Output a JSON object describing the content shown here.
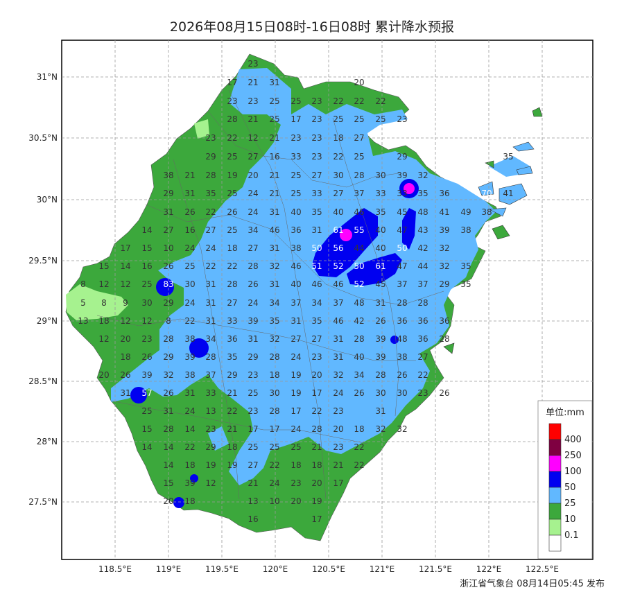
{
  "title": "2026年08月15日08时-16日08时 累计降水预报",
  "footer": "浙江省气象台 08月14日05:45 发布",
  "axes": {
    "lat_labels": [
      "31°N",
      "30.5°N",
      "30°N",
      "29.5°N",
      "29°N",
      "28.5°N",
      "28°N",
      "27.5°N"
    ],
    "lon_labels": [
      "118.5°E",
      "119°E",
      "119.5°E",
      "120°E",
      "120.5°E",
      "121°E",
      "121.5°E",
      "122°E",
      "122.5°E"
    ]
  },
  "legend": {
    "title": "单位:mm",
    "items": [
      {
        "label": "400",
        "color": "#ff0000"
      },
      {
        "label": "250",
        "color": "#7f0041"
      },
      {
        "label": "100",
        "color": "#ff00ff"
      },
      {
        "label": "50",
        "color": "#0000f0"
      },
      {
        "label": "25",
        "color": "#61b8ff"
      },
      {
        "label": "10",
        "color": "#3ca83c"
      },
      {
        "label": "0.1",
        "color": "#a6f28f"
      },
      {
        "label": "",
        "color": "#ffffff"
      }
    ]
  },
  "colors": {
    "sea": "#ffffff",
    "land_10": "#3ca83c",
    "land_25": "#61b8ff",
    "land_50": "#0000f0",
    "land_100": "#ff00ff",
    "land_light": "#a6f28f"
  },
  "station_values": [
    {
      "v": "23",
      "lon": 119.85,
      "lat": 31.1
    },
    {
      "v": "17",
      "lon": 119.72,
      "lat": 30.95
    },
    {
      "v": "21",
      "lon": 119.85,
      "lat": 30.95
    },
    {
      "v": "31",
      "lon": 120.0,
      "lat": 30.95
    },
    {
      "v": "20",
      "lon": 120.68,
      "lat": 30.95
    },
    {
      "v": "23",
      "lon": 119.72,
      "lat": 30.81
    },
    {
      "v": "23",
      "lon": 119.85,
      "lat": 30.81
    },
    {
      "v": "25",
      "lon": 120.0,
      "lat": 30.81
    },
    {
      "v": "25",
      "lon": 120.15,
      "lat": 30.81
    },
    {
      "v": "23",
      "lon": 120.3,
      "lat": 30.81
    },
    {
      "v": "22",
      "lon": 120.45,
      "lat": 30.81
    },
    {
      "v": "22",
      "lon": 120.58,
      "lat": 30.81
    },
    {
      "v": "22",
      "lon": 120.72,
      "lat": 30.81
    },
    {
      "v": "28",
      "lon": 120.87,
      "lat": 30.81
    },
    {
      "v": "21",
      "lon": 119.72,
      "lat": 30.66
    },
    {
      "v": "25",
      "lon": 119.85,
      "lat": 30.66
    },
    {
      "v": "17",
      "lon": 120.0,
      "lat": 30.66
    },
    {
      "v": "23",
      "lon": 120.15,
      "lat": 30.66
    },
    {
      "v": "25",
      "lon": 120.3,
      "lat": 30.66
    },
    {
      "v": "25",
      "lon": 120.45,
      "lat": 30.66
    },
    {
      "v": "25",
      "lon": 120.58,
      "lat": 30.66
    },
    {
      "v": "23",
      "lon": 120.72,
      "lat": 30.66
    },
    {
      "v": "23",
      "lon": 120.87,
      "lat": 30.66
    },
    {
      "v": "22",
      "lon": 121.02,
      "lat": 30.66
    },
    {
      "v": "12",
      "lon": 119.35,
      "lat": 30.5
    },
    {
      "v": "21",
      "lon": 119.5,
      "lat": 30.5
    },
    {
      "v": "23",
      "lon": 119.62,
      "lat": 30.5
    },
    {
      "v": "23",
      "lon": 119.74,
      "lat": 30.5
    },
    {
      "v": "18",
      "lon": 120.0,
      "lat": 30.5
    },
    {
      "v": "27",
      "lon": 120.15,
      "lat": 30.5
    },
    {
      "v": "29",
      "lon": 120.3,
      "lat": 30.5
    },
    {
      "v": "25",
      "lon": 120.45,
      "lat": 30.5
    },
    {
      "v": "27",
      "lon": 120.58,
      "lat": 30.5
    },
    {
      "v": "16",
      "lon": 119.5,
      "lat": 30.35
    },
    {
      "v": "33",
      "lon": 119.62,
      "lat": 30.35
    },
    {
      "v": "23",
      "lon": 119.74,
      "lat": 30.35
    },
    {
      "v": "22",
      "lon": 119.87,
      "lat": 30.35
    },
    {
      "v": "25",
      "lon": 120.0,
      "lat": 30.35
    },
    {
      "v": "29",
      "lon": 120.15,
      "lat": 30.35
    },
    {
      "v": "35",
      "lon": 120.3,
      "lat": 30.35
    },
    {
      "v": "38",
      "lon": 120.45,
      "lat": 30.35
    },
    {
      "v": "21",
      "lon": 120.87,
      "lat": 30.35
    },
    {
      "v": "28",
      "lon": 121.72,
      "lat": 30.35
    },
    {
      "v": "19",
      "lon": 119.0,
      "lat": 30.2
    },
    {
      "v": "20",
      "lon": 119.12,
      "lat": 30.2
    },
    {
      "v": "21",
      "lon": 119.25,
      "lat": 30.2
    },
    {
      "v": "25",
      "lon": 119.38,
      "lat": 30.2
    },
    {
      "v": "27",
      "lon": 119.5,
      "lat": 30.2
    },
    {
      "v": "30",
      "lon": 119.62,
      "lat": 30.2
    },
    {
      "v": "28",
      "lon": 119.74,
      "lat": 30.2
    },
    {
      "v": "30",
      "lon": 119.87,
      "lat": 30.2
    },
    {
      "v": "39",
      "lon": 120.0,
      "lat": 30.2
    },
    {
      "v": "32",
      "lon": 120.15,
      "lat": 30.2
    },
    {
      "v": "29",
      "lon": 120.3,
      "lat": 30.2
    },
    {
      "v": "31",
      "lon": 120.45,
      "lat": 30.2
    },
    {
      "v": "35",
      "lon": 120.58,
      "lat": 30.2
    },
    {
      "v": "25",
      "lon": 119.0,
      "lat": 30.05
    },
    {
      "v": "24",
      "lon": 119.12,
      "lat": 30.05
    },
    {
      "v": "21",
      "lon": 119.25,
      "lat": 30.05
    },
    {
      "v": "25",
      "lon": 119.38,
      "lat": 30.05
    },
    {
      "v": "33",
      "lon": 119.5,
      "lat": 30.05
    },
    {
      "v": "27",
      "lon": 119.62,
      "lat": 30.05
    },
    {
      "v": "37",
      "lon": 119.74,
      "lat": 30.05
    },
    {
      "v": "33",
      "lon": 119.87,
      "lat": 30.05
    },
    {
      "v": "33",
      "lon": 120.0,
      "lat": 30.05
    },
    {
      "v": "35",
      "lon": 120.15,
      "lat": 30.05
    },
    {
      "v": "36",
      "lon": 120.3,
      "lat": 30.05
    },
    {
      "v": "70",
      "lon": 120.45,
      "lat": 30.05,
      "hi": true
    },
    {
      "v": "41",
      "lon": 120.58,
      "lat": 30.05
    },
    {
      "v": "46",
      "lon": 120.72,
      "lat": 30.05
    },
    {
      "v": "36",
      "lon": 121.0,
      "lat": 30.05
    },
    {
      "v": "38",
      "lon": 121.14,
      "lat": 30.05
    }
  ],
  "station_values_south": [
    {
      "v": "31"
    },
    {
      "v": "26"
    },
    {
      "v": "22"
    },
    {
      "v": "26"
    },
    {
      "v": "24"
    },
    {
      "v": "31"
    },
    {
      "v": "40"
    },
    {
      "v": "35"
    },
    {
      "v": "40"
    },
    {
      "v": "46"
    },
    {
      "v": "35"
    },
    {
      "v": "45"
    },
    {
      "v": "48"
    },
    {
      "v": "41"
    },
    {
      "v": "49"
    },
    {
      "v": "38"
    },
    {
      "v": "14"
    },
    {
      "v": "27"
    },
    {
      "v": "16"
    },
    {
      "v": "27"
    },
    {
      "v": "25"
    },
    {
      "v": "34"
    },
    {
      "v": "46"
    },
    {
      "v": "36"
    },
    {
      "v": "31"
    },
    {
      "v": "61"
    },
    {
      "v": "55"
    },
    {
      "v": "40"
    },
    {
      "v": "47"
    },
    {
      "v": "43"
    },
    {
      "v": "39"
    },
    {
      "v": "38"
    },
    {
      "v": "17"
    },
    {
      "v": "15"
    },
    {
      "v": "10"
    },
    {
      "v": "24"
    },
    {
      "v": "24"
    },
    {
      "v": "18"
    },
    {
      "v": "27"
    },
    {
      "v": "31"
    },
    {
      "v": "38"
    },
    {
      "v": "50"
    },
    {
      "v": "56"
    },
    {
      "v": "44"
    },
    {
      "v": "40"
    },
    {
      "v": "50"
    },
    {
      "v": "42"
    },
    {
      "v": "32"
    },
    {
      "v": "15"
    },
    {
      "v": "14"
    },
    {
      "v": "16"
    },
    {
      "v": "26"
    },
    {
      "v": "25"
    },
    {
      "v": "22"
    },
    {
      "v": "22"
    },
    {
      "v": "28"
    },
    {
      "v": "32"
    },
    {
      "v": "46"
    },
    {
      "v": "51"
    },
    {
      "v": "52"
    },
    {
      "v": "50"
    },
    {
      "v": "61"
    },
    {
      "v": "47"
    },
    {
      "v": "44"
    },
    {
      "v": "32"
    },
    {
      "v": "35"
    },
    {
      "v": "8"
    },
    {
      "v": "12"
    },
    {
      "v": "12"
    },
    {
      "v": "25"
    },
    {
      "v": "83"
    },
    {
      "v": "30"
    },
    {
      "v": "31"
    },
    {
      "v": "28"
    },
    {
      "v": "26"
    },
    {
      "v": "31"
    },
    {
      "v": "40"
    },
    {
      "v": "46"
    },
    {
      "v": "46"
    },
    {
      "v": "52"
    },
    {
      "v": "45"
    },
    {
      "v": "37"
    },
    {
      "v": "37"
    },
    {
      "v": "29"
    },
    {
      "v": "35"
    },
    {
      "v": "5"
    },
    {
      "v": "8"
    },
    {
      "v": "9"
    },
    {
      "v": "30"
    },
    {
      "v": "29"
    },
    {
      "v": "24"
    },
    {
      "v": "31"
    },
    {
      "v": "27"
    },
    {
      "v": "24"
    },
    {
      "v": "34"
    },
    {
      "v": "37"
    },
    {
      "v": "34"
    },
    {
      "v": "37"
    },
    {
      "v": "48"
    },
    {
      "v": "31"
    },
    {
      "v": "28"
    },
    {
      "v": "28"
    },
    {
      "v": "13"
    },
    {
      "v": "18"
    },
    {
      "v": "12"
    },
    {
      "v": "12"
    },
    {
      "v": "8"
    },
    {
      "v": "22"
    },
    {
      "v": "31"
    },
    {
      "v": "33"
    },
    {
      "v": "39"
    },
    {
      "v": "35"
    },
    {
      "v": "31"
    },
    {
      "v": "35"
    },
    {
      "v": "46"
    },
    {
      "v": "42"
    },
    {
      "v": "26"
    },
    {
      "v": "36"
    },
    {
      "v": "36"
    },
    {
      "v": "36"
    },
    {
      "v": "12"
    },
    {
      "v": "20"
    },
    {
      "v": "23"
    },
    {
      "v": "28"
    },
    {
      "v": "38"
    },
    {
      "v": "34"
    },
    {
      "v": "36"
    },
    {
      "v": "31"
    },
    {
      "v": "32"
    },
    {
      "v": "27"
    },
    {
      "v": "27"
    },
    {
      "v": "31"
    },
    {
      "v": "28"
    },
    {
      "v": "39"
    },
    {
      "v": "48"
    },
    {
      "v": "36"
    },
    {
      "v": "28"
    },
    {
      "v": "18"
    },
    {
      "v": "26"
    },
    {
      "v": "29"
    },
    {
      "v": "39"
    },
    {
      "v": "28"
    },
    {
      "v": "35"
    },
    {
      "v": "29"
    },
    {
      "v": "28"
    },
    {
      "v": "24"
    },
    {
      "v": "23"
    },
    {
      "v": "31"
    },
    {
      "v": "40"
    },
    {
      "v": "39"
    },
    {
      "v": "38"
    },
    {
      "v": "27"
    },
    {
      "v": "20"
    },
    {
      "v": "26"
    },
    {
      "v": "39"
    },
    {
      "v": "32"
    },
    {
      "v": "38"
    },
    {
      "v": "37"
    },
    {
      "v": "29"
    },
    {
      "v": "23"
    },
    {
      "v": "18"
    },
    {
      "v": "19"
    },
    {
      "v": "20"
    },
    {
      "v": "32"
    },
    {
      "v": "34"
    },
    {
      "v": "28"
    },
    {
      "v": "26"
    },
    {
      "v": "22"
    },
    {
      "v": "31"
    },
    {
      "v": "57"
    },
    {
      "v": "26"
    },
    {
      "v": "31"
    },
    {
      "v": "33"
    },
    {
      "v": "21"
    },
    {
      "v": "25"
    },
    {
      "v": "30"
    },
    {
      "v": "19"
    },
    {
      "v": "17"
    },
    {
      "v": "24"
    },
    {
      "v": "26"
    },
    {
      "v": "30"
    },
    {
      "v": "30"
    },
    {
      "v": "23"
    },
    {
      "v": "26"
    },
    {
      "v": "25"
    },
    {
      "v": "31"
    },
    {
      "v": "24"
    },
    {
      "v": "13"
    },
    {
      "v": "22"
    },
    {
      "v": "23"
    },
    {
      "v": "28"
    },
    {
      "v": "17"
    },
    {
      "v": "22"
    },
    {
      "v": "23"
    },
    {
      "v": "31"
    },
    {
      "v": "15"
    },
    {
      "v": "28"
    },
    {
      "v": "14"
    },
    {
      "v": "23"
    },
    {
      "v": "21"
    },
    {
      "v": "17"
    },
    {
      "v": "17"
    },
    {
      "v": "24"
    },
    {
      "v": "28"
    },
    {
      "v": "20"
    },
    {
      "v": "18"
    },
    {
      "v": "32"
    },
    {
      "v": "32"
    },
    {
      "v": "14"
    },
    {
      "v": "14"
    },
    {
      "v": "22"
    },
    {
      "v": "29"
    },
    {
      "v": "18"
    },
    {
      "v": "25"
    },
    {
      "v": "25"
    },
    {
      "v": "25"
    },
    {
      "v": "21"
    },
    {
      "v": "23"
    },
    {
      "v": "22"
    },
    {
      "v": "14"
    },
    {
      "v": "18"
    },
    {
      "v": "19"
    },
    {
      "v": "19"
    },
    {
      "v": "27"
    },
    {
      "v": "22"
    },
    {
      "v": "18"
    },
    {
      "v": "18"
    },
    {
      "v": "21"
    },
    {
      "v": "22"
    },
    {
      "v": "15"
    },
    {
      "v": "39"
    },
    {
      "v": "12"
    },
    {
      "v": "21"
    },
    {
      "v": "24"
    },
    {
      "v": "23"
    },
    {
      "v": "20"
    },
    {
      "v": "17"
    },
    {
      "v": "20"
    },
    {
      "v": "18"
    },
    {
      "v": "13"
    },
    {
      "v": "10"
    },
    {
      "v": "20"
    },
    {
      "v": "19"
    },
    {
      "v": "16"
    },
    {
      "v": "17"
    }
  ]
}
